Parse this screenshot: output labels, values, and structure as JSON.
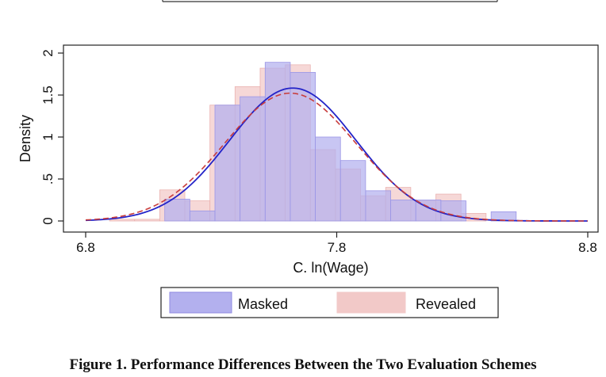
{
  "caption": "Figure 1.  Performance Differences Between the Two Evaluation Schemes",
  "colors": {
    "masked_fill": "#b3b0ee",
    "masked_line": "#2323c8",
    "revealed_fill": "#f2c9c8",
    "revealed_line": "#c83c3c",
    "overlap_fill": "#c3a6d6"
  },
  "chart_data": {
    "type": "bar",
    "title": "",
    "xlabel": "C. ln(Wage)",
    "ylabel": "Density",
    "xlim": [
      6.8,
      8.8
    ],
    "ylim": [
      0,
      2.05
    ],
    "xticks": [
      {
        "value": 6.8,
        "label": "6.8"
      },
      {
        "value": 7.8,
        "label": "7.8"
      },
      {
        "value": 8.8,
        "label": "8.8"
      }
    ],
    "yticks": [
      {
        "value": 0,
        "label": "0"
      },
      {
        "value": 0.5,
        "label": ".5"
      },
      {
        "value": 1,
        "label": "1"
      },
      {
        "value": 1.5,
        "label": "1.5"
      },
      {
        "value": 2,
        "label": "2"
      }
    ],
    "grid": false,
    "legend_position": "bottom",
    "series": [
      {
        "name": "Masked",
        "kind": "histogram",
        "bins": [
          {
            "x0": 7.115,
            "x1": 7.215,
            "density": 0.26
          },
          {
            "x0": 7.215,
            "x1": 7.315,
            "density": 0.12
          },
          {
            "x0": 7.315,
            "x1": 7.415,
            "density": 1.38
          },
          {
            "x0": 7.415,
            "x1": 7.515,
            "density": 1.48
          },
          {
            "x0": 7.515,
            "x1": 7.615,
            "density": 1.89
          },
          {
            "x0": 7.615,
            "x1": 7.715,
            "density": 1.77
          },
          {
            "x0": 7.715,
            "x1": 7.815,
            "density": 1.0
          },
          {
            "x0": 7.815,
            "x1": 7.915,
            "density": 0.72
          },
          {
            "x0": 7.915,
            "x1": 8.015,
            "density": 0.36
          },
          {
            "x0": 8.015,
            "x1": 8.115,
            "density": 0.25
          },
          {
            "x0": 8.115,
            "x1": 8.215,
            "density": 0.25
          },
          {
            "x0": 8.215,
            "x1": 8.315,
            "density": 0.24
          },
          {
            "x0": 8.415,
            "x1": 8.515,
            "density": 0.11
          }
        ],
        "curve": {
          "kind": "normal",
          "mean": 7.625,
          "sd": 0.252
        }
      },
      {
        "name": "Revealed",
        "kind": "histogram",
        "bins": [
          {
            "x0": 6.895,
            "x1": 6.995,
            "density": 0.02
          },
          {
            "x0": 6.995,
            "x1": 7.095,
            "density": 0.02
          },
          {
            "x0": 7.095,
            "x1": 7.195,
            "density": 0.37
          },
          {
            "x0": 7.195,
            "x1": 7.295,
            "density": 0.24
          },
          {
            "x0": 7.295,
            "x1": 7.395,
            "density": 1.38
          },
          {
            "x0": 7.395,
            "x1": 7.495,
            "density": 1.6
          },
          {
            "x0": 7.495,
            "x1": 7.595,
            "density": 1.82
          },
          {
            "x0": 7.595,
            "x1": 7.695,
            "density": 1.86
          },
          {
            "x0": 7.695,
            "x1": 7.795,
            "density": 0.85
          },
          {
            "x0": 7.795,
            "x1": 7.895,
            "density": 0.62
          },
          {
            "x0": 7.895,
            "x1": 7.995,
            "density": 0.3
          },
          {
            "x0": 7.995,
            "x1": 8.095,
            "density": 0.4
          },
          {
            "x0": 8.095,
            "x1": 8.195,
            "density": 0.24
          },
          {
            "x0": 8.195,
            "x1": 8.295,
            "density": 0.32
          },
          {
            "x0": 8.295,
            "x1": 8.395,
            "density": 0.09
          }
        ],
        "curve": {
          "kind": "normal",
          "mean": 7.615,
          "sd": 0.262,
          "style": "dashed"
        }
      }
    ]
  }
}
